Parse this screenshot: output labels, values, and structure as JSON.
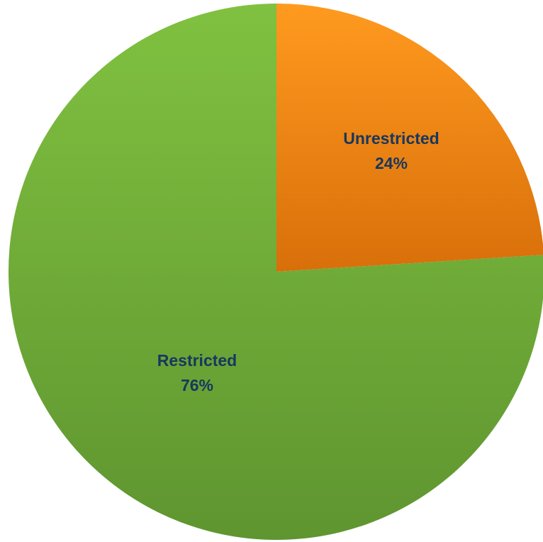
{
  "chart_data": {
    "type": "pie",
    "title": "",
    "legend": "none",
    "slices": [
      {
        "name": "Unrestricted",
        "value": 24,
        "label": "Unrestricted",
        "value_label": "24%",
        "color_light": "#ff9a1f",
        "color_dark": "#d86f0a"
      },
      {
        "name": "Restricted",
        "value": 76,
        "label": "Restricted",
        "value_label": "76%",
        "color_light": "#80c140",
        "color_dark": "#5f9530"
      }
    ],
    "label_color": "#17375e"
  }
}
